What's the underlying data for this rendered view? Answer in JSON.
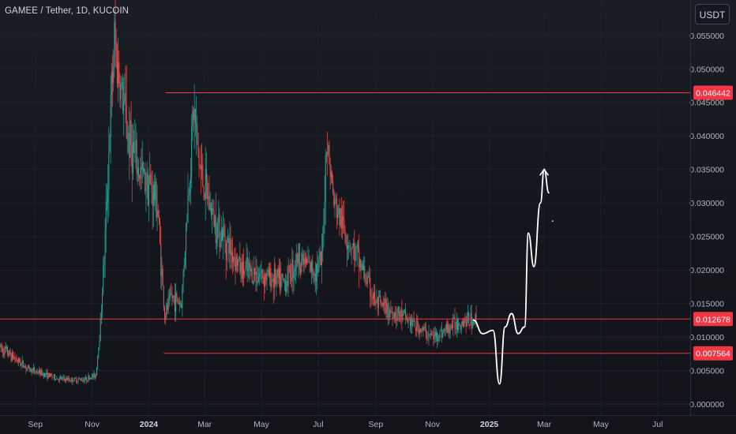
{
  "header": {
    "title": "GAMEE / Tether, 1D, KUCOIN",
    "currency_button": "USDT"
  },
  "colors": {
    "up": "#26a69a",
    "down": "#ef5350",
    "level_line": "#f23645",
    "price_tag_bg": "#f23645",
    "axis_text": "#b2b5be",
    "drawing": "#ffffff"
  },
  "chart_data": {
    "type": "candlestick",
    "title": "GAMEE / Tether, 1D, KUCOIN",
    "y_axis": {
      "position": "right",
      "range": [
        0.0,
        0.058
      ],
      "ticks": [
        "0.055000",
        "0.050000",
        "0.045000",
        "0.040000",
        "0.035000",
        "0.030000",
        "0.025000",
        "0.020000",
        "0.015000",
        "0.010000",
        "0.005000",
        "0.000000"
      ]
    },
    "x_axis": {
      "ticks": [
        "Sep",
        "Nov",
        "2024",
        "Mar",
        "May",
        "Jul",
        "Sep",
        "Nov",
        "2025",
        "Mar",
        "May",
        "Jul"
      ],
      "range": [
        "2023-07-25",
        "2025-08-05"
      ]
    },
    "grid": true,
    "horizontal_levels": [
      {
        "price": 0.046442,
        "label": "0.046442",
        "from_date": "2024-01-19"
      },
      {
        "price": 0.012678,
        "label": "0.012678",
        "from_date": "2023-07-25"
      },
      {
        "price": 0.007564,
        "label": "0.007564",
        "from_date": "2024-01-17"
      }
    ],
    "price_series_approx": {
      "dates": [
        "2023-07-25",
        "2023-08-10",
        "2023-08-25",
        "2023-09-10",
        "2023-09-25",
        "2023-10-10",
        "2023-10-25",
        "2023-11-05",
        "2023-11-10",
        "2023-11-15",
        "2023-11-20",
        "2023-11-25",
        "2023-12-01",
        "2023-12-10",
        "2023-12-20",
        "2024-01-01",
        "2024-01-10",
        "2024-01-18",
        "2024-01-25",
        "2024-02-05",
        "2024-02-18",
        "2024-02-25",
        "2024-03-10",
        "2024-03-25",
        "2024-04-10",
        "2024-04-25",
        "2024-05-10",
        "2024-05-25",
        "2024-06-10",
        "2024-06-25",
        "2024-07-05",
        "2024-07-10",
        "2024-07-18",
        "2024-08-01",
        "2024-08-15",
        "2024-09-01",
        "2024-09-15",
        "2024-10-01",
        "2024-10-15",
        "2024-11-01",
        "2024-11-15",
        "2024-11-25",
        "2024-12-05",
        "2024-12-15"
      ],
      "close": [
        0.0085,
        0.0068,
        0.0052,
        0.0045,
        0.0038,
        0.0036,
        0.0037,
        0.0043,
        0.012,
        0.025,
        0.041,
        0.054,
        0.048,
        0.04,
        0.035,
        0.033,
        0.03,
        0.013,
        0.016,
        0.015,
        0.044,
        0.035,
        0.028,
        0.024,
        0.02,
        0.0195,
        0.019,
        0.018,
        0.022,
        0.02,
        0.021,
        0.04,
        0.03,
        0.025,
        0.021,
        0.015,
        0.014,
        0.013,
        0.0115,
        0.01,
        0.011,
        0.012,
        0.0125,
        0.0125
      ]
    },
    "projection_path_approx": {
      "dates": [
        "2024-12-15",
        "2024-12-25",
        "2025-01-05",
        "2025-01-12",
        "2025-01-18",
        "2025-01-25",
        "2025-02-01",
        "2025-02-08",
        "2025-02-12",
        "2025-02-18",
        "2025-02-25",
        "2025-03-01",
        "2025-03-06"
      ],
      "values": [
        0.0125,
        0.0105,
        0.011,
        0.003,
        0.0115,
        0.0135,
        0.0105,
        0.0115,
        0.0255,
        0.0205,
        0.03,
        0.035,
        0.0315
      ]
    }
  }
}
